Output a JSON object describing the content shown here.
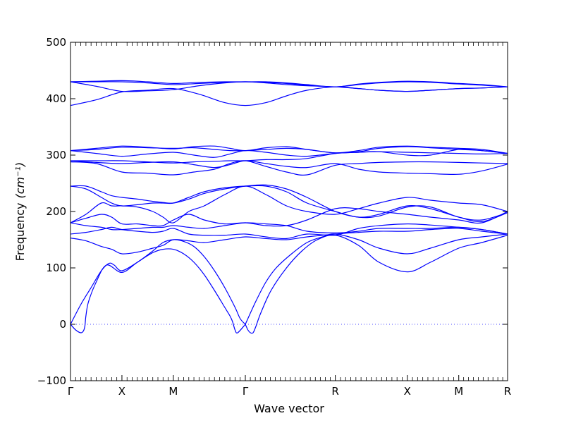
{
  "chart_data": {
    "type": "line",
    "xlabel": "Wave vector",
    "ylabel": "Frequency",
    "ylabel_unit": "(cm⁻¹)",
    "ylim": [
      -100,
      500
    ],
    "yticks": [
      -100,
      0,
      100,
      200,
      300,
      400,
      500
    ],
    "xlim": [
      0,
      8.5
    ],
    "xticks": [
      {
        "label": "Γ",
        "x": 0
      },
      {
        "label": "X",
        "x": 1.0
      },
      {
        "label": "M",
        "x": 2.0
      },
      {
        "label": "Γ",
        "x": 3.4
      },
      {
        "label": "R",
        "x": 5.15
      },
      {
        "label": "X",
        "x": 6.55
      },
      {
        "label": "M",
        "x": 7.55
      },
      {
        "label": "R",
        "x": 8.5
      }
    ],
    "zero_line": {
      "y": 0,
      "style": "dotted"
    },
    "line_color": "#0000ff",
    "series": [
      {
        "x": [
          0,
          0.1,
          0.2,
          0.25,
          0.28,
          0.3,
          0.35,
          0.5,
          0.7,
          1.0,
          1.3,
          1.6,
          1.8,
          2.0,
          2.2,
          2.4,
          2.6,
          2.8,
          3.0,
          3.1,
          3.15,
          3.2,
          3.25,
          3.4
        ],
        "y": [
          0,
          -10,
          -15,
          -12,
          -3,
          15,
          40,
          75,
          105,
          92,
          110,
          127,
          133,
          133,
          125,
          110,
          88,
          60,
          30,
          15,
          5,
          -10,
          -15,
          0
        ]
      },
      {
        "x": [
          0,
          0.2,
          0.4,
          0.6,
          0.75,
          0.85,
          1.0,
          1.3,
          1.6,
          1.8,
          2.0,
          2.2,
          2.4,
          2.6,
          2.8,
          3.0,
          3.2,
          3.3,
          3.4
        ],
        "y": [
          0,
          35,
          65,
          95,
          108,
          105,
          95,
          110,
          130,
          145,
          150,
          147,
          138,
          120,
          95,
          65,
          30,
          10,
          0
        ]
      },
      {
        "x": [
          3.4,
          3.45,
          3.5,
          3.55,
          3.6,
          3.7,
          3.9,
          4.2,
          4.5,
          4.8,
          5.15,
          5.6,
          6.0,
          6.55,
          7.0,
          7.55,
          8.0,
          8.5
        ],
        "y": [
          0,
          -10,
          -15,
          -15,
          -5,
          20,
          60,
          100,
          130,
          150,
          158,
          140,
          110,
          93,
          110,
          135,
          145,
          158
        ]
      },
      {
        "x": [
          3.4,
          3.6,
          3.8,
          4.0,
          4.3,
          4.6,
          4.9,
          5.15,
          5.6,
          6.0,
          6.55,
          7.0,
          7.55,
          8.0,
          8.5
        ],
        "y": [
          0,
          40,
          75,
          100,
          125,
          145,
          155,
          160,
          150,
          135,
          125,
          135,
          150,
          155,
          160
        ]
      },
      {
        "x": [
          0,
          0.3,
          0.6,
          0.8,
          1.0,
          1.3,
          1.6,
          1.8,
          2.0,
          2.3,
          2.6,
          3.0,
          3.4,
          3.8,
          4.2,
          4.6,
          5.15,
          5.6,
          6.0,
          6.55,
          7.0,
          7.55,
          8.0,
          8.5
        ],
        "y": [
          153,
          148,
          138,
          133,
          125,
          128,
          135,
          140,
          150,
          148,
          145,
          150,
          155,
          152,
          150,
          155,
          160,
          163,
          165,
          165,
          168,
          170,
          165,
          160
        ]
      },
      {
        "x": [
          0,
          0.3,
          0.6,
          0.8,
          1.0,
          1.3,
          1.6,
          1.8,
          2.0,
          2.3,
          2.6,
          3.0,
          3.4,
          3.8,
          4.2,
          4.6,
          5.15,
          5.6,
          6.0,
          6.55,
          7.0,
          7.55,
          8.0,
          8.5
        ],
        "y": [
          160,
          163,
          168,
          172,
          168,
          165,
          163,
          165,
          170,
          160,
          158,
          158,
          160,
          155,
          152,
          160,
          158,
          170,
          175,
          178,
          176,
          172,
          168,
          160
        ]
      },
      {
        "x": [
          0,
          0.3,
          0.6,
          0.8,
          1.0,
          1.3,
          1.6,
          1.8,
          2.0,
          2.3,
          2.6,
          3.0,
          3.4,
          3.8,
          4.2,
          4.6,
          5.15,
          5.6,
          6.0,
          6.55,
          7.0,
          7.55,
          8.0,
          8.5
        ],
        "y": [
          180,
          175,
          172,
          168,
          168,
          170,
          172,
          172,
          175,
          172,
          170,
          175,
          180,
          178,
          175,
          165,
          162,
          165,
          170,
          170,
          170,
          172,
          168,
          160
        ]
      },
      {
        "x": [
          0,
          0.3,
          0.6,
          0.8,
          1.0,
          1.3,
          1.6,
          1.8,
          2.0,
          2.3,
          2.6,
          3.0,
          3.4,
          3.8,
          4.2,
          4.6,
          5.15,
          5.6,
          6.0,
          6.55,
          7.0,
          7.55,
          8.0,
          8.5
        ],
        "y": [
          180,
          188,
          195,
          190,
          178,
          178,
          175,
          175,
          185,
          195,
          185,
          178,
          180,
          175,
          175,
          185,
          205,
          205,
          200,
          195,
          190,
          185,
          180,
          200
        ]
      },
      {
        "x": [
          0,
          0.3,
          0.6,
          0.8,
          1.0,
          1.3,
          1.6,
          1.8,
          2.0,
          2.3,
          2.6,
          3.0,
          3.4,
          3.8,
          4.2,
          4.6,
          5.15,
          5.6,
          6.0,
          6.55,
          7.0,
          7.55,
          8.0,
          8.5
        ],
        "y": [
          180,
          195,
          215,
          210,
          210,
          208,
          200,
          190,
          180,
          200,
          210,
          230,
          245,
          230,
          210,
          200,
          195,
          205,
          215,
          225,
          220,
          215,
          212,
          200
        ]
      },
      {
        "x": [
          0,
          0.3,
          0.6,
          0.8,
          1.0,
          1.3,
          1.6,
          1.8,
          2.0,
          2.3,
          2.6,
          3.0,
          3.4,
          3.8,
          4.2,
          4.6,
          5.15,
          5.6,
          6.0,
          6.55,
          7.0,
          7.55,
          8.0,
          8.5
        ],
        "y": [
          245,
          240,
          225,
          215,
          210,
          212,
          215,
          215,
          215,
          225,
          235,
          242,
          245,
          245,
          235,
          215,
          200,
          190,
          195,
          210,
          205,
          190,
          182,
          198
        ]
      },
      {
        "x": [
          0,
          0.3,
          0.6,
          0.8,
          1.0,
          1.3,
          1.6,
          1.8,
          2.0,
          2.3,
          2.6,
          3.0,
          3.4,
          3.8,
          4.2,
          4.6,
          5.15,
          5.6,
          6.0,
          6.55,
          7.0,
          7.55,
          8.0,
          8.5
        ],
        "y": [
          245,
          245,
          235,
          228,
          225,
          222,
          218,
          216,
          215,
          222,
          232,
          240,
          245,
          247,
          240,
          225,
          200,
          190,
          192,
          208,
          208,
          190,
          185,
          198
        ]
      },
      {
        "x": [
          0,
          0.5,
          1.0,
          1.5,
          2.0,
          2.4,
          2.8,
          3.1,
          3.4,
          3.8,
          4.2,
          4.6,
          5.15,
          5.6,
          6.0,
          6.55,
          7.0,
          7.55,
          8.0,
          8.5
        ],
        "y": [
          288,
          285,
          270,
          268,
          265,
          270,
          275,
          285,
          290,
          280,
          270,
          265,
          282,
          285,
          287,
          288,
          288,
          287,
          286,
          285
        ]
      },
      {
        "x": [
          0,
          0.5,
          1.0,
          1.5,
          2.0,
          2.4,
          2.8,
          3.1,
          3.4,
          3.8,
          4.2,
          4.6,
          5.15,
          5.6,
          6.0,
          6.55,
          7.0,
          7.55,
          8.0,
          8.5
        ],
        "y": [
          290,
          287,
          285,
          287,
          288,
          283,
          278,
          283,
          290,
          285,
          280,
          278,
          285,
          275,
          270,
          268,
          267,
          266,
          272,
          284
        ]
      },
      {
        "x": [
          0,
          0.5,
          1.0,
          1.5,
          2.0,
          2.4,
          2.8,
          3.1,
          3.4,
          3.8,
          4.2,
          4.6,
          5.15,
          5.6,
          6.0,
          6.55,
          7.0,
          7.55,
          8.0,
          8.5
        ],
        "y": [
          290,
          290,
          290,
          288,
          286,
          288,
          289,
          290,
          290,
          292,
          292,
          294,
          303,
          305,
          306,
          305,
          304,
          303,
          302,
          303
        ]
      },
      {
        "x": [
          0,
          0.5,
          1.0,
          1.5,
          2.0,
          2.4,
          2.8,
          3.1,
          3.4,
          3.8,
          4.2,
          4.6,
          5.15,
          5.6,
          6.0,
          6.55,
          7.0,
          7.55,
          8.0,
          8.5
        ],
        "y": [
          308,
          303,
          298,
          302,
          305,
          300,
          296,
          302,
          308,
          305,
          300,
          298,
          303,
          305,
          306,
          300,
          300,
          310,
          308,
          303
        ]
      },
      {
        "x": [
          0,
          0.5,
          1.0,
          1.5,
          2.0,
          2.4,
          2.8,
          3.1,
          3.4,
          3.8,
          4.2,
          4.6,
          5.15,
          5.6,
          6.0,
          6.55,
          7.0,
          7.55,
          8.0,
          8.5
        ],
        "y": [
          308,
          310,
          314,
          313,
          312,
          313,
          310,
          308,
          308,
          310,
          312,
          310,
          304,
          306,
          312,
          315,
          313,
          310,
          308,
          303
        ]
      },
      {
        "x": [
          0,
          0.5,
          1.0,
          1.5,
          2.0,
          2.4,
          2.8,
          3.1,
          3.4,
          3.8,
          4.2,
          4.6,
          5.15,
          5.6,
          6.0,
          6.55,
          7.0,
          7.55,
          8.0,
          8.5
        ],
        "y": [
          308,
          312,
          316,
          314,
          311,
          315,
          316,
          312,
          308,
          313,
          315,
          310,
          304,
          308,
          314,
          316,
          314,
          312,
          310,
          303
        ]
      },
      {
        "x": [
          0,
          0.5,
          1.0,
          1.5,
          2.0,
          2.5,
          3.0,
          3.4,
          3.8,
          4.2,
          4.6,
          5.15,
          5.6,
          6.0,
          6.55,
          7.0,
          7.55,
          8.0,
          8.5
        ],
        "y": [
          388,
          398,
          412,
          415,
          418,
          408,
          393,
          388,
          393,
          405,
          415,
          421,
          418,
          415,
          413,
          415,
          418,
          419,
          421
        ]
      },
      {
        "x": [
          0,
          0.5,
          1.0,
          1.5,
          2.0,
          2.5,
          3.0,
          3.4,
          3.8,
          4.2,
          4.6,
          5.15,
          5.6,
          6.0,
          6.55,
          7.0,
          7.55,
          8.0,
          8.5
        ],
        "y": [
          430,
          422,
          413,
          414,
          416,
          423,
          428,
          430,
          428,
          425,
          423,
          421,
          418,
          415,
          413,
          415,
          418,
          419,
          421
        ]
      },
      {
        "x": [
          0,
          0.5,
          1.0,
          1.5,
          2.0,
          2.5,
          3.0,
          3.4,
          3.8,
          4.2,
          4.6,
          5.15,
          5.6,
          6.0,
          6.55,
          7.0,
          7.55,
          8.0,
          8.5
        ],
        "y": [
          430,
          430,
          430,
          428,
          425,
          427,
          429,
          430,
          429,
          427,
          424,
          421,
          425,
          428,
          430,
          429,
          426,
          424,
          421
        ]
      },
      {
        "x": [
          0,
          0.5,
          1.0,
          1.5,
          2.0,
          2.5,
          3.0,
          3.4,
          3.8,
          4.2,
          4.6,
          5.15,
          5.6,
          6.0,
          6.55,
          7.0,
          7.55,
          8.0,
          8.5
        ],
        "y": [
          430,
          431,
          432,
          430,
          427,
          429,
          430,
          430,
          430,
          428,
          425,
          421,
          426,
          429,
          431,
          430,
          427,
          425,
          421
        ]
      }
    ]
  }
}
